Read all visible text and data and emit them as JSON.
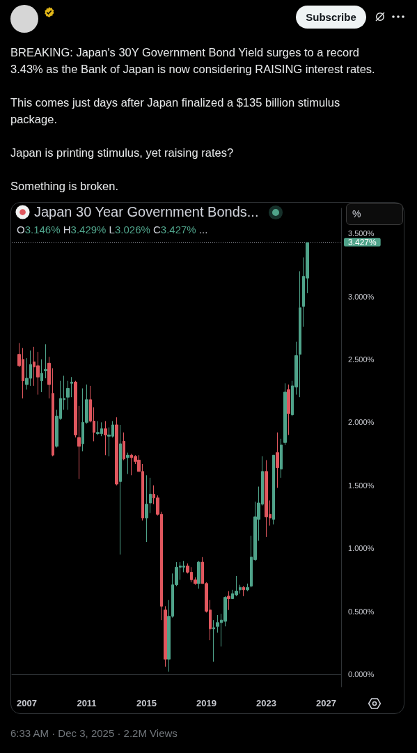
{
  "chart_data": {
    "type": "candlestick",
    "subtitle": "BREAKING: Japan's 30Y Government Bond Yield surges to a record 3.43% as the Bank of Japan is now considering RAISING interest rates.\n\nThis comes just days after Japan finalized a $135 billion stimulus package.\n\nJapan is printing stimulus, yet raising rates?\n\nSomething is broken.",
    "title": "Japan 30 Year Government Bonds...",
    "annotations": [
      "Subscribe",
      "O3.146% H3.429% L3.026% C3.427% ...",
      "%",
      "6:33 AM · Dec 3, 2025 · 2.2M Views"
    ],
    "x": [
      "2006-07",
      "2006-10",
      "2007-01",
      "2007-04",
      "2007-07",
      "2007-10",
      "2008-01",
      "2008-04",
      "2008-07",
      "2008-10",
      "2009-01",
      "2009-04",
      "2009-07",
      "2009-10",
      "2010-01",
      "2010-04",
      "2010-07",
      "2010-10",
      "2011-01",
      "2011-04",
      "2011-07",
      "2011-10",
      "2012-01",
      "2012-04",
      "2012-07",
      "2012-10",
      "2013-01",
      "2013-04",
      "2013-07",
      "2013-10",
      "2014-01",
      "2014-04",
      "2014-07",
      "2014-10",
      "2015-01",
      "2015-04",
      "2015-07",
      "2015-10",
      "2016-01",
      "2016-04",
      "2016-07",
      "2016-10",
      "2017-01",
      "2017-04",
      "2017-07",
      "2017-10",
      "2018-01",
      "2018-04",
      "2018-07",
      "2018-10",
      "2019-01",
      "2019-04",
      "2019-07",
      "2019-10",
      "2020-01",
      "2020-04",
      "2020-07",
      "2020-10",
      "2021-01",
      "2021-04",
      "2021-07",
      "2021-10",
      "2022-01",
      "2022-04",
      "2022-07",
      "2022-10",
      "2023-01",
      "2023-04",
      "2023-07",
      "2023-10",
      "2024-01",
      "2024-04",
      "2024-07",
      "2024-10",
      "2025-01",
      "2025-04",
      "2025-07",
      "2025-10"
    ],
    "ohlc": [
      [
        2.54,
        2.63,
        2.44,
        2.45
      ],
      [
        2.5,
        2.59,
        2.19,
        2.33
      ],
      [
        2.3,
        2.51,
        2.26,
        2.35
      ],
      [
        2.35,
        2.57,
        2.29,
        2.46
      ],
      [
        2.48,
        2.6,
        2.29,
        2.44
      ],
      [
        2.45,
        2.56,
        2.22,
        2.36
      ],
      [
        2.33,
        2.5,
        2.24,
        2.39
      ],
      [
        2.41,
        2.62,
        2.35,
        2.42
      ],
      [
        2.47,
        2.52,
        2.19,
        2.3
      ],
      [
        2.23,
        2.43,
        1.73,
        1.74
      ],
      [
        1.81,
        2.1,
        1.8,
        2.05
      ],
      [
        2.03,
        2.33,
        2.02,
        2.19
      ],
      [
        2.18,
        2.37,
        2.1,
        2.19
      ],
      [
        2.2,
        2.33,
        2.1,
        2.27
      ],
      [
        2.31,
        2.36,
        2.2,
        2.32
      ],
      [
        2.32,
        2.33,
        1.88,
        1.9
      ],
      [
        1.88,
        2.13,
        1.55,
        1.81
      ],
      [
        1.83,
        2.27,
        1.77,
        2.0
      ],
      [
        2.0,
        2.3,
        1.99,
        2.18
      ],
      [
        2.18,
        2.29,
        2.0,
        2.01
      ],
      [
        2.01,
        2.12,
        1.85,
        1.92
      ],
      [
        1.91,
        2.01,
        1.9,
        1.92
      ],
      [
        1.91,
        2.0,
        1.89,
        1.95
      ],
      [
        1.95,
        2.01,
        1.74,
        1.9
      ],
      [
        1.89,
        1.96,
        1.73,
        1.9
      ],
      [
        1.89,
        2.01,
        1.88,
        1.98
      ],
      [
        1.98,
        2.04,
        1.5,
        1.51
      ],
      [
        1.53,
        1.98,
        0.95,
        1.83
      ],
      [
        1.85,
        1.92,
        1.7,
        1.71
      ],
      [
        1.72,
        1.76,
        1.59,
        1.74
      ],
      [
        1.74,
        1.75,
        1.58,
        1.72
      ],
      [
        1.73,
        1.74,
        1.67,
        1.69
      ],
      [
        1.7,
        1.74,
        1.61,
        1.61
      ],
      [
        1.61,
        1.67,
        1.22,
        1.24
      ],
      [
        1.24,
        1.58,
        1.05,
        1.35
      ],
      [
        1.36,
        1.56,
        1.28,
        1.43
      ],
      [
        1.43,
        1.5,
        1.35,
        1.4
      ],
      [
        1.4,
        1.42,
        1.26,
        1.27
      ],
      [
        1.27,
        1.29,
        0.43,
        0.54
      ],
      [
        0.51,
        0.54,
        0.06,
        0.12
      ],
      [
        0.12,
        0.59,
        0.02,
        0.46
      ],
      [
        0.46,
        0.8,
        0.45,
        0.71
      ],
      [
        0.71,
        0.89,
        0.7,
        0.85
      ],
      [
        0.85,
        0.89,
        0.75,
        0.86
      ],
      [
        0.85,
        0.9,
        0.81,
        0.86
      ],
      [
        0.86,
        0.88,
        0.8,
        0.81
      ],
      [
        0.81,
        0.85,
        0.73,
        0.75
      ],
      [
        0.75,
        0.77,
        0.71,
        0.72
      ],
      [
        0.72,
        0.9,
        0.68,
        0.89
      ],
      [
        0.89,
        0.93,
        0.72,
        0.72
      ],
      [
        0.72,
        0.73,
        0.49,
        0.5
      ],
      [
        0.51,
        0.59,
        0.27,
        0.36
      ],
      [
        0.36,
        0.43,
        0.1,
        0.37
      ],
      [
        0.38,
        0.47,
        0.33,
        0.41
      ],
      [
        0.41,
        0.48,
        0.22,
        0.43
      ],
      [
        0.42,
        0.62,
        0.38,
        0.61
      ],
      [
        0.62,
        0.66,
        0.51,
        0.6
      ],
      [
        0.6,
        0.67,
        0.6,
        0.64
      ],
      [
        0.63,
        0.78,
        0.62,
        0.66
      ],
      [
        0.67,
        0.71,
        0.64,
        0.69
      ],
      [
        0.69,
        0.7,
        0.62,
        0.67
      ],
      [
        0.67,
        0.72,
        0.66,
        0.69
      ],
      [
        0.7,
        1.1,
        0.69,
        0.93
      ],
      [
        0.91,
        1.37,
        0.9,
        1.25
      ],
      [
        1.23,
        1.49,
        1.06,
        1.36
      ],
      [
        1.35,
        1.73,
        1.34,
        1.61
      ],
      [
        1.61,
        1.7,
        1.09,
        1.25
      ],
      [
        1.27,
        1.38,
        1.18,
        1.24
      ],
      [
        1.23,
        1.74,
        1.19,
        1.74
      ],
      [
        1.76,
        1.92,
        1.48,
        1.64
      ],
      [
        1.63,
        1.87,
        1.56,
        1.82
      ],
      [
        1.84,
        2.31,
        1.82,
        2.24
      ],
      [
        2.26,
        2.3,
        1.9,
        2.07
      ],
      [
        2.06,
        2.33,
        2.05,
        2.29
      ],
      [
        2.28,
        2.64,
        2.22,
        2.53
      ],
      [
        2.54,
        3.2,
        2.2,
        2.91
      ],
      [
        2.92,
        3.31,
        2.76,
        3.16
      ],
      [
        3.146,
        3.429,
        3.026,
        3.427
      ]
    ],
    "colors": [
      "#e0575e",
      "#e0575e",
      "#4fa38a",
      "#4fa38a",
      "#e0575e",
      "#e0575e",
      "#4fa38a",
      "#4fa38a",
      "#e0575e",
      "#e0575e",
      "#4fa38a",
      "#4fa38a",
      "#4fa38a",
      "#4fa38a",
      "#4fa38a",
      "#e0575e",
      "#e0575e",
      "#4fa38a",
      "#4fa38a",
      "#e0575e",
      "#e0575e",
      "#4fa38a",
      "#4fa38a",
      "#e0575e",
      "#4fa38a",
      "#4fa38a",
      "#e0575e",
      "#4fa38a",
      "#e0575e",
      "#4fa38a",
      "#e0575e",
      "#e0575e",
      "#e0575e",
      "#e0575e",
      "#4fa38a",
      "#4fa38a",
      "#e0575e",
      "#e0575e",
      "#e0575e",
      "#e0575e",
      "#4fa38a",
      "#4fa38a",
      "#4fa38a",
      "#4fa38a",
      "#4fa38a",
      "#e0575e",
      "#e0575e",
      "#e0575e",
      "#4fa38a",
      "#e0575e",
      "#e0575e",
      "#e0575e",
      "#4fa38a",
      "#4fa38a",
      "#4fa38a",
      "#4fa38a",
      "#e0575e",
      "#4fa38a",
      "#4fa38a",
      "#4fa38a",
      "#e0575e",
      "#4fa38a",
      "#4fa38a",
      "#4fa38a",
      "#4fa38a",
      "#4fa38a",
      "#e0575e",
      "#e0575e",
      "#4fa38a",
      "#e0575e",
      "#4fa38a",
      "#4fa38a",
      "#e0575e",
      "#4fa38a",
      "#4fa38a",
      "#4fa38a",
      "#4fa38a",
      "#4fa38a"
    ],
    "xlim": [
      "2006-01",
      "2028-01"
    ],
    "xticks": [
      "2007",
      "2011",
      "2015",
      "2019",
      "2023",
      "2027"
    ],
    "ylim": [
      -0.1,
      3.7
    ],
    "yticks": [
      {
        "value": 0,
        "label": "0.000%"
      },
      {
        "value": 0.5,
        "label": "0.500%"
      },
      {
        "value": 1,
        "label": "1.000%"
      },
      {
        "value": 1.5,
        "label": "1.500%"
      },
      {
        "value": 2,
        "label": "2.000%"
      },
      {
        "value": 2.5,
        "label": "2.500%"
      },
      {
        "value": 3,
        "label": "3.000%"
      },
      {
        "value": 3.5,
        "label": "3.500%"
      }
    ],
    "ref_lines": [
      {
        "axis": "y",
        "value": 3.427,
        "label": "3.427%",
        "color": "#8c8f98",
        "line_style": "dotted"
      }
    ]
  }
}
